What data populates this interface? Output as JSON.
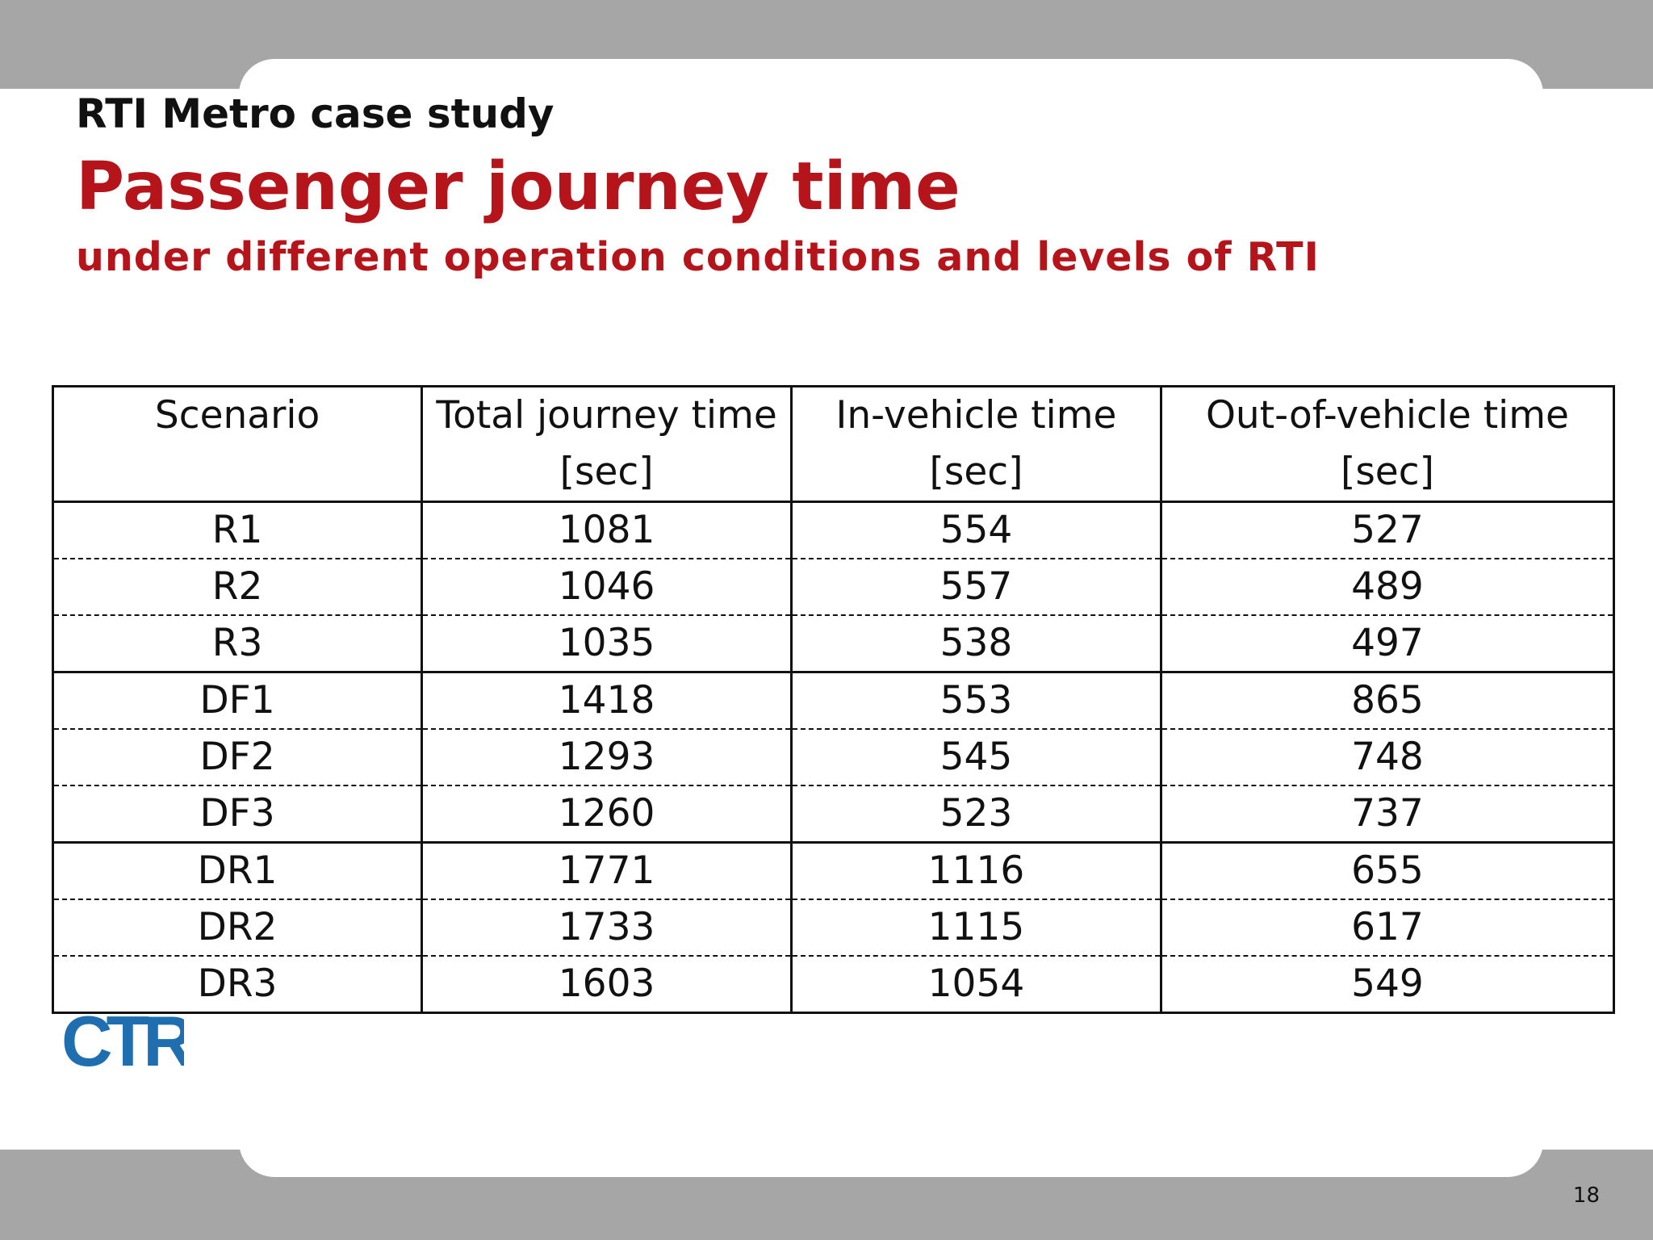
{
  "header": {
    "case_study": "RTI Metro case study",
    "title": "Passenger journey time",
    "subtitle": "under different operation conditions and levels of RTI"
  },
  "table": {
    "columns": [
      {
        "line1": "Scenario",
        "line2": ""
      },
      {
        "line1": "Total journey time",
        "line2": "[sec]"
      },
      {
        "line1": "In-vehicle time",
        "line2": "[sec]"
      },
      {
        "line1": "Out-of-vehicle time",
        "line2": "[sec]"
      }
    ],
    "rows": [
      [
        "R1",
        "1081",
        "554",
        "527"
      ],
      [
        "R2",
        "1046",
        "557",
        "489"
      ],
      [
        "R3",
        "1035",
        "538",
        "497"
      ],
      [
        "DF1",
        "1418",
        "553",
        "865"
      ],
      [
        "DF2",
        "1293",
        "545",
        "748"
      ],
      [
        "DF3",
        "1260",
        "523",
        "737"
      ],
      [
        "DR1",
        "1771",
        "1116",
        "655"
      ],
      [
        "DR2",
        "1733",
        "1115",
        "617"
      ],
      [
        "DR3",
        "1603",
        "1054",
        "549"
      ]
    ]
  },
  "logo": {
    "text": "CTR",
    "color": "#1f6fb0"
  },
  "footer": {
    "page_number": "18"
  },
  "colors": {
    "accent": "#b4141a",
    "band": "#a6a6a6"
  }
}
